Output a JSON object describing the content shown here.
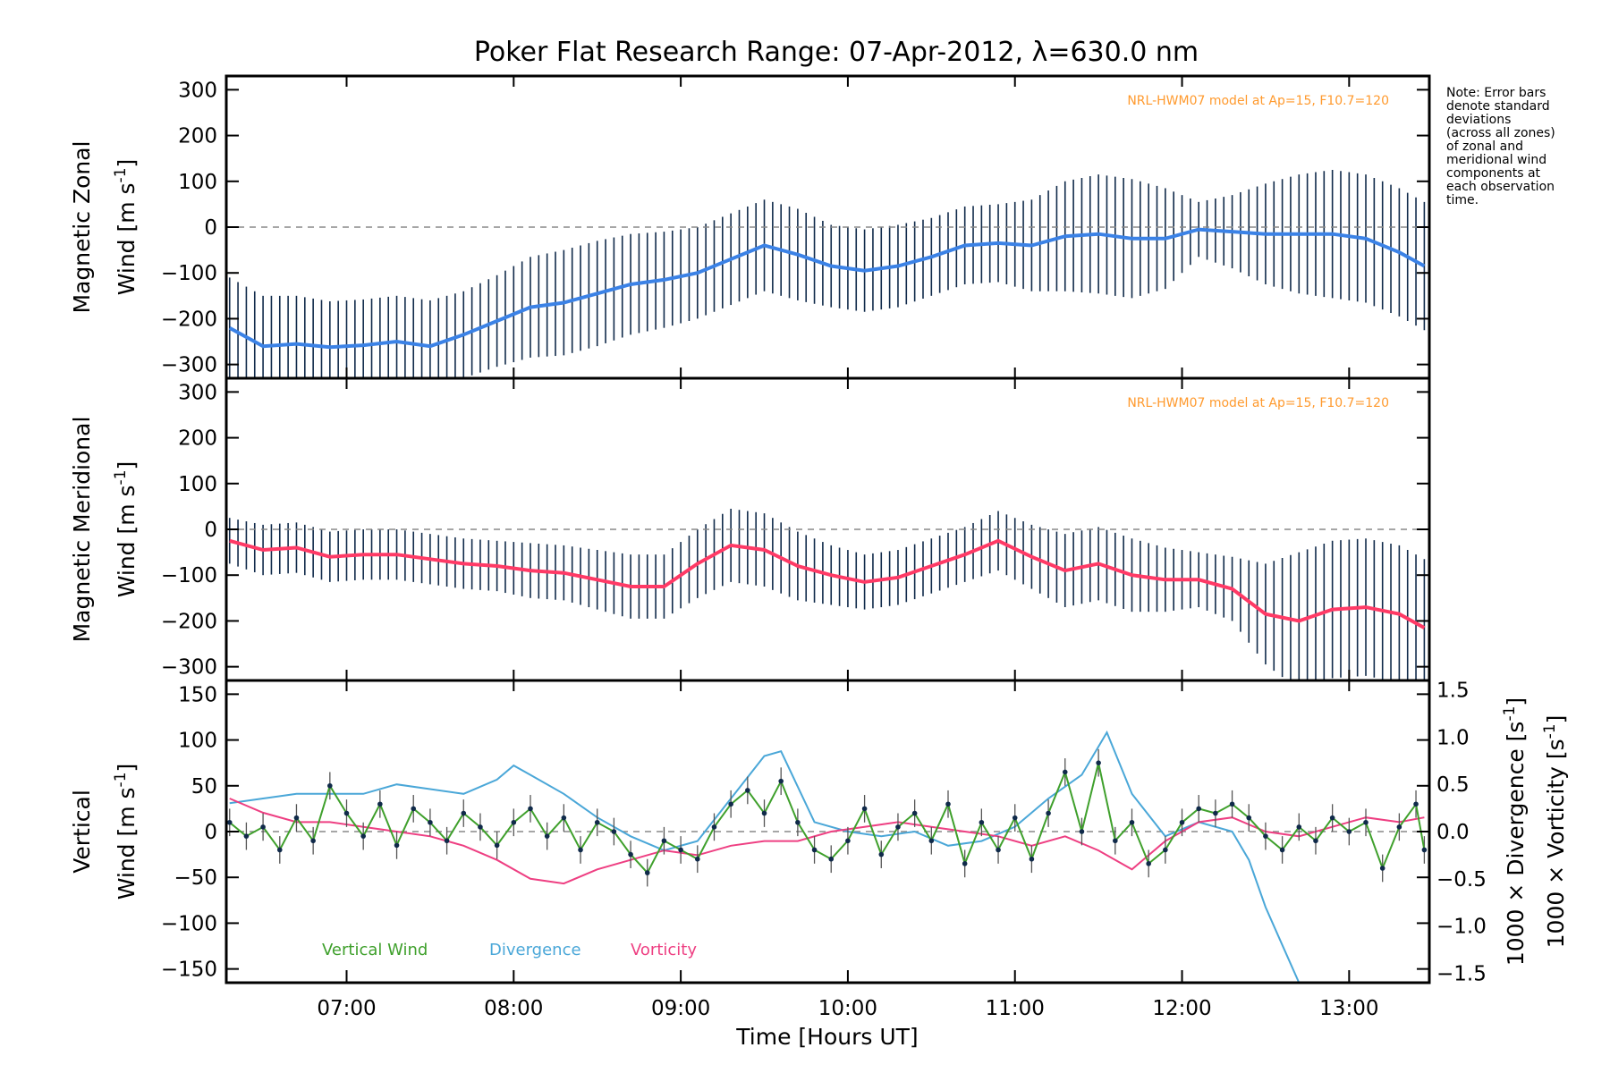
{
  "title": "Poker Flat Research Range: 07-Apr-2012, λ=630.0 nm",
  "note_lines": [
    "Note: Error bars",
    "denote standard",
    "deviations",
    "(across all zones)",
    "of zonal and",
    "meridional wind",
    "components at",
    "each observation",
    "time."
  ],
  "model_label": "NRL-HWM07 model at Ap=15, F10.7=120",
  "colors": {
    "zonal": "#3b82e6",
    "meridional": "#ff3a66",
    "vertical": "#3fa02c",
    "divergence": "#4aa7d8",
    "vorticity": "#ee3f82",
    "model": "#ff9a2e",
    "zone_points": "#a79de0",
    "error_bars": "#102a4a"
  },
  "chart_data": [
    {
      "type": "line",
      "panel": "zonal",
      "ylabel_line1": "Magnetic Zonal",
      "ylabel_line2_prefix": "Wind [m s",
      "ylabel_sup": "-1",
      "ylabel_suffix": "]",
      "xlim": [
        6.28,
        13.48
      ],
      "ylim": [
        -330,
        330
      ],
      "yticks": [
        -300,
        -200,
        -100,
        0,
        100,
        200,
        300
      ],
      "ytick_labels": [
        "−300",
        "−200",
        "−100",
        "0",
        "100",
        "200",
        "300"
      ],
      "x": [
        6.3,
        6.5,
        6.7,
        6.9,
        7.1,
        7.3,
        7.5,
        7.7,
        7.9,
        8.1,
        8.3,
        8.5,
        8.7,
        8.9,
        9.1,
        9.3,
        9.5,
        9.7,
        9.9,
        10.1,
        10.3,
        10.5,
        10.7,
        10.9,
        11.1,
        11.3,
        11.5,
        11.7,
        11.9,
        12.1,
        12.3,
        12.5,
        12.7,
        12.9,
        13.1,
        13.3,
        13.45
      ],
      "values": [
        -220,
        -260,
        -255,
        -262,
        -258,
        -250,
        -260,
        -235,
        -205,
        -175,
        -165,
        -145,
        -125,
        -115,
        -100,
        -70,
        -40,
        -60,
        -85,
        -95,
        -85,
        -65,
        -40,
        -35,
        -40,
        -20,
        -15,
        -25,
        -25,
        -5,
        -10,
        -15,
        -15,
        -15,
        -25,
        -55,
        -85
      ],
      "error": [
        110,
        110,
        105,
        100,
        100,
        100,
        100,
        95,
        100,
        110,
        115,
        115,
        110,
        105,
        100,
        100,
        100,
        100,
        90,
        90,
        90,
        85,
        85,
        85,
        100,
        120,
        130,
        130,
        110,
        60,
        80,
        110,
        130,
        140,
        140,
        140,
        140
      ],
      "series_name": "Zonal wind"
    },
    {
      "type": "line",
      "panel": "meridional",
      "ylabel_line1": "Magnetic Meridional",
      "ylabel_line2_prefix": "Wind [m s",
      "ylabel_sup": "-1",
      "ylabel_suffix": "]",
      "xlim": [
        6.28,
        13.48
      ],
      "ylim": [
        -330,
        330
      ],
      "yticks": [
        -300,
        -200,
        -100,
        0,
        100,
        200,
        300
      ],
      "ytick_labels": [
        "−300",
        "−200",
        "−100",
        "0",
        "100",
        "200",
        "300"
      ],
      "x": [
        6.3,
        6.5,
        6.7,
        6.9,
        7.1,
        7.3,
        7.5,
        7.7,
        7.9,
        8.1,
        8.3,
        8.5,
        8.7,
        8.9,
        9.1,
        9.3,
        9.5,
        9.7,
        9.9,
        10.1,
        10.3,
        10.5,
        10.7,
        10.9,
        11.1,
        11.3,
        11.5,
        11.7,
        11.9,
        12.1,
        12.3,
        12.5,
        12.7,
        12.9,
        13.1,
        13.3,
        13.45
      ],
      "values": [
        -25,
        -45,
        -40,
        -60,
        -55,
        -55,
        -65,
        -75,
        -80,
        -90,
        -95,
        -110,
        -125,
        -125,
        -75,
        -35,
        -45,
        -80,
        -100,
        -115,
        -105,
        -80,
        -55,
        -25,
        -60,
        -90,
        -75,
        -100,
        -110,
        -110,
        -130,
        -185,
        -200,
        -175,
        -170,
        -185,
        -215
      ],
      "error": [
        50,
        55,
        55,
        55,
        55,
        55,
        55,
        55,
        55,
        60,
        60,
        65,
        70,
        70,
        75,
        80,
        80,
        75,
        65,
        60,
        60,
        60,
        60,
        65,
        70,
        80,
        80,
        80,
        70,
        60,
        70,
        110,
        150,
        150,
        150,
        150,
        150
      ],
      "series_name": "Meridional wind"
    },
    {
      "type": "line",
      "panel": "vertical",
      "ylabel_line1": "Vertical",
      "ylabel_line2_prefix": "Wind [m s",
      "ylabel_sup": "-1",
      "ylabel_suffix": "]",
      "right_label_div": "1000 × Divergence [s",
      "right_label_vort": "1000 × Vorticity [s",
      "right_sup": "-1",
      "right_suffix": "]",
      "xlim": [
        6.28,
        13.48
      ],
      "ylim": [
        -165,
        165
      ],
      "yticks": [
        -150,
        -100,
        -50,
        0,
        50,
        100,
        150
      ],
      "ytick_labels": [
        "−150",
        "−100",
        "−50",
        "0",
        "50",
        "100",
        "150"
      ],
      "y2lim": [
        -1.6,
        1.6
      ],
      "y2ticks": [
        -1.5,
        -1.0,
        -0.5,
        0.0,
        0.5,
        1.0,
        1.5
      ],
      "y2tick_labels": [
        "−1.5",
        "−1.0",
        "−0.5",
        "0.0",
        "0.5",
        "1.0",
        "1.5"
      ],
      "xticks": [
        7,
        8,
        9,
        10,
        11,
        12,
        13
      ],
      "xtick_labels": [
        "07:00",
        "08:00",
        "09:00",
        "10:00",
        "11:00",
        "12:00",
        "13:00"
      ],
      "xlabel": "Time [Hours UT]",
      "series": [
        {
          "name": "Vertical Wind",
          "x": [
            6.3,
            6.4,
            6.5,
            6.6,
            6.7,
            6.8,
            6.9,
            7.0,
            7.1,
            7.2,
            7.3,
            7.4,
            7.5,
            7.6,
            7.7,
            7.8,
            7.9,
            8.0,
            8.1,
            8.2,
            8.3,
            8.4,
            8.5,
            8.6,
            8.7,
            8.8,
            8.9,
            9.0,
            9.1,
            9.2,
            9.3,
            9.4,
            9.5,
            9.6,
            9.7,
            9.8,
            9.9,
            10.0,
            10.1,
            10.2,
            10.3,
            10.4,
            10.5,
            10.6,
            10.7,
            10.8,
            10.9,
            11.0,
            11.1,
            11.2,
            11.3,
            11.4,
            11.5,
            11.6,
            11.7,
            11.8,
            11.9,
            12.0,
            12.1,
            12.2,
            12.3,
            12.4,
            12.5,
            12.6,
            12.7,
            12.8,
            12.9,
            13.0,
            13.1,
            13.2,
            13.3,
            13.4,
            13.45
          ],
          "values": [
            10,
            -5,
            5,
            -20,
            15,
            -10,
            50,
            20,
            -5,
            30,
            -15,
            25,
            10,
            -10,
            20,
            5,
            -15,
            10,
            25,
            -5,
            15,
            -20,
            10,
            0,
            -25,
            -45,
            -10,
            -20,
            -30,
            5,
            30,
            45,
            20,
            55,
            10,
            -20,
            -30,
            -10,
            25,
            -25,
            5,
            20,
            -10,
            30,
            -35,
            10,
            -20,
            15,
            -30,
            20,
            65,
            0,
            75,
            -10,
            10,
            -35,
            -20,
            10,
            25,
            20,
            30,
            15,
            -5,
            -20,
            5,
            -10,
            15,
            0,
            10,
            -40,
            5,
            30,
            -20
          ],
          "error": 15
        },
        {
          "name": "Divergence",
          "x": [
            6.3,
            6.5,
            6.7,
            6.9,
            7.1,
            7.3,
            7.5,
            7.7,
            7.9,
            8.0,
            8.1,
            8.3,
            8.5,
            8.7,
            8.9,
            9.1,
            9.3,
            9.5,
            9.6,
            9.8,
            10.0,
            10.2,
            10.4,
            10.6,
            10.8,
            11.0,
            11.2,
            11.4,
            11.55,
            11.7,
            11.9,
            12.1,
            12.3,
            12.4,
            12.5,
            12.6,
            12.7
          ],
          "values": [
            0.3,
            0.35,
            0.4,
            0.4,
            0.4,
            0.5,
            0.45,
            0.4,
            0.55,
            0.7,
            0.6,
            0.4,
            0.15,
            -0.05,
            -0.2,
            -0.1,
            0.35,
            0.8,
            0.85,
            0.1,
            0.0,
            -0.05,
            0.0,
            -0.15,
            -0.1,
            0.05,
            0.35,
            0.6,
            1.05,
            0.4,
            -0.05,
            0.1,
            0.0,
            -0.3,
            -0.8,
            -1.2,
            -1.6
          ]
        },
        {
          "name": "Vorticity",
          "x": [
            6.3,
            6.5,
            6.7,
            6.9,
            7.1,
            7.3,
            7.5,
            7.7,
            7.9,
            8.1,
            8.3,
            8.5,
            8.7,
            8.9,
            9.1,
            9.3,
            9.5,
            9.7,
            9.9,
            10.1,
            10.3,
            10.5,
            10.7,
            10.9,
            11.1,
            11.3,
            11.5,
            11.7,
            11.9,
            12.1,
            12.3,
            12.5,
            12.7,
            12.9,
            13.1,
            13.3,
            13.45
          ],
          "values": [
            0.35,
            0.2,
            0.1,
            0.1,
            0.05,
            0.0,
            -0.05,
            -0.15,
            -0.3,
            -0.5,
            -0.55,
            -0.4,
            -0.3,
            -0.2,
            -0.25,
            -0.15,
            -0.1,
            -0.1,
            0.0,
            0.05,
            0.1,
            0.05,
            0.0,
            -0.05,
            -0.15,
            -0.05,
            -0.2,
            -0.4,
            -0.1,
            0.1,
            0.15,
            0.0,
            -0.05,
            0.05,
            0.15,
            0.1,
            0.15
          ]
        }
      ]
    }
  ]
}
